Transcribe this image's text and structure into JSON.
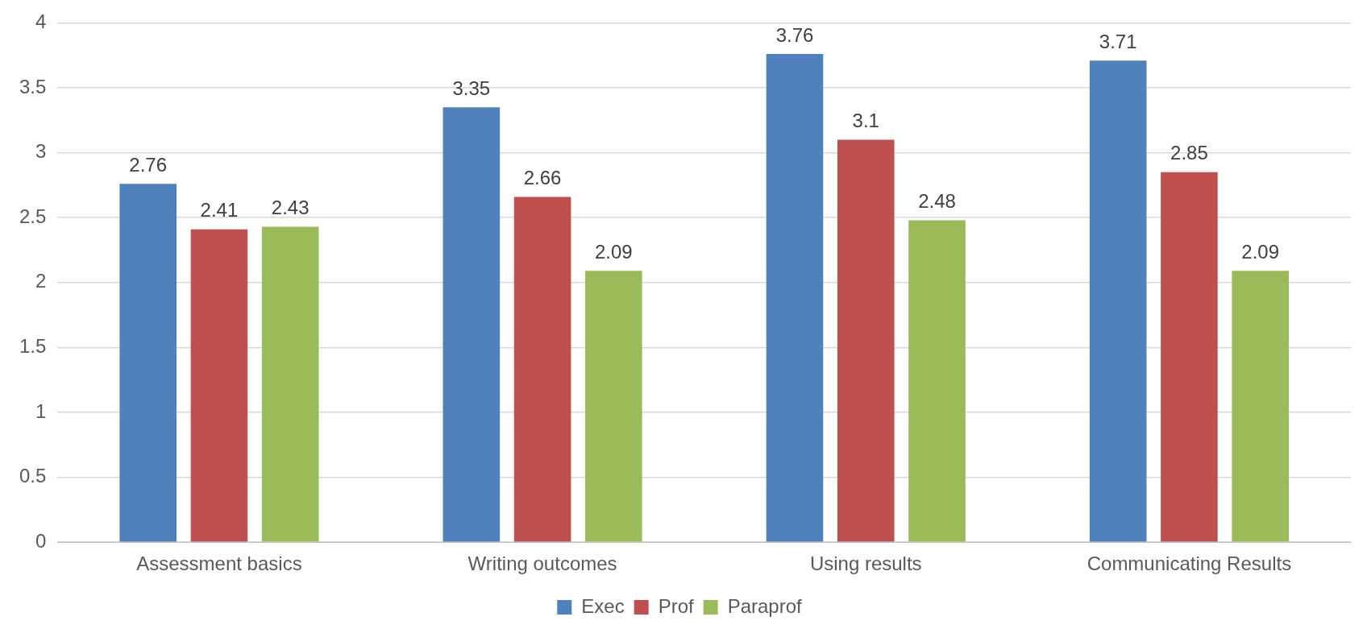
{
  "chart_data": {
    "type": "bar",
    "categories": [
      "Assessment basics",
      "Writing outcomes",
      "Using results",
      "Communicating Results"
    ],
    "series": [
      {
        "name": "Exec",
        "color": "#4f81bd",
        "values": [
          2.76,
          3.35,
          3.76,
          3.71
        ]
      },
      {
        "name": "Prof",
        "color": "#c0504d",
        "values": [
          2.41,
          2.66,
          3.1,
          2.85
        ]
      },
      {
        "name": "Paraprof",
        "color": "#9bbb59",
        "values": [
          2.43,
          2.09,
          2.48,
          2.09
        ]
      }
    ],
    "ylim": [
      0,
      4
    ],
    "yticks": [
      0,
      0.5,
      1,
      1.5,
      2,
      2.5,
      3,
      3.5,
      4
    ],
    "grid": "y",
    "legend": "bottom",
    "data_labels": true
  }
}
